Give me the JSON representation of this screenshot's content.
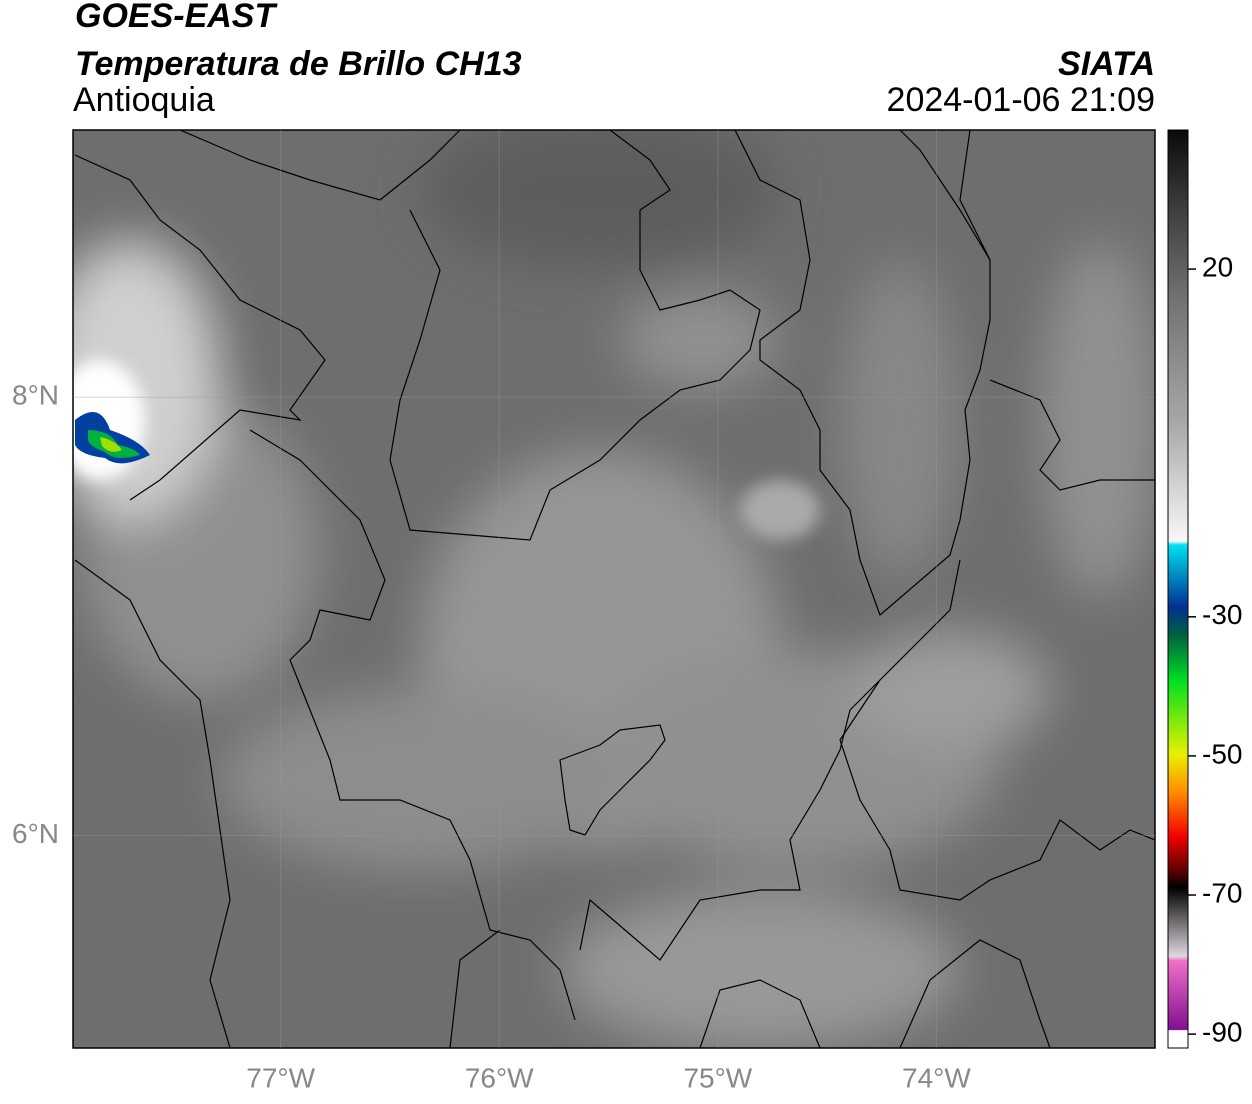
{
  "header": {
    "satellite": "GOES-EAST",
    "product": "Temperatura de Brillo CH13",
    "region": "Antioquia",
    "agency": "SIATA",
    "timestamp": "2024-01-06 21:09"
  },
  "map": {
    "xlim": [
      -77.95,
      -73.0
    ],
    "ylim": [
      5.03,
      9.22
    ],
    "xticks": [
      {
        "value": -77,
        "label": "77°W"
      },
      {
        "value": -76,
        "label": "76°W"
      },
      {
        "value": -75,
        "label": "75°W"
      },
      {
        "value": -74,
        "label": "74°W"
      }
    ],
    "yticks": [
      {
        "value": 8,
        "label": "8°N"
      },
      {
        "value": 6,
        "label": "6°N"
      }
    ],
    "grid": true
  },
  "colorbar": {
    "lim": [
      -92,
      40
    ],
    "ticks": [
      20,
      -30,
      -50,
      -70,
      -90
    ]
  }
}
